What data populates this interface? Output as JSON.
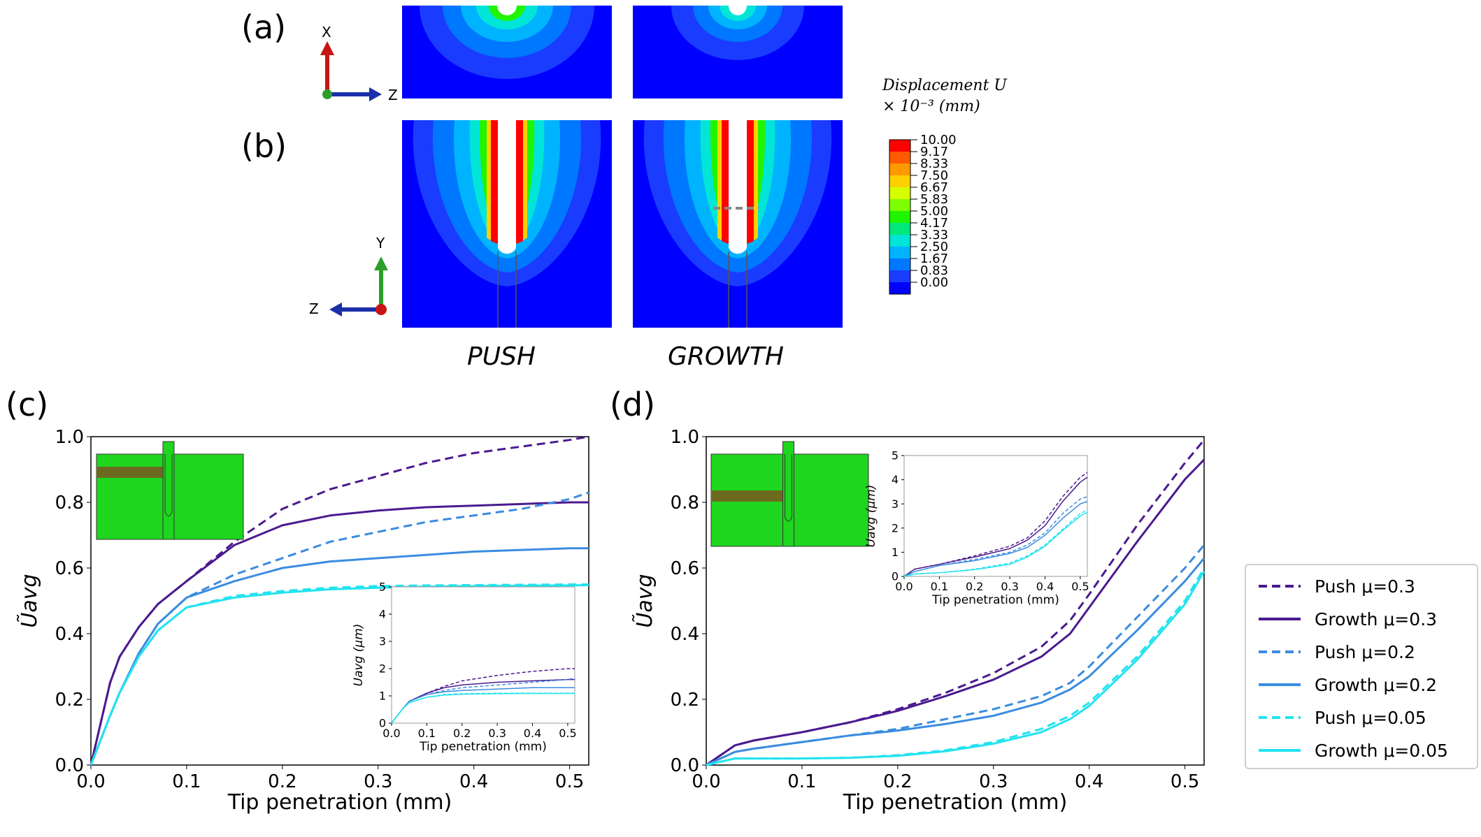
{
  "panel_labels": {
    "a": "(a)",
    "b": "(b)",
    "c": "(c)",
    "d": "(d)"
  },
  "columns": {
    "push": "PUSH",
    "growth": "GROWTH"
  },
  "axes_a": {
    "vertical": "X",
    "horizontal": "Z"
  },
  "axes_b": {
    "vertical": "Y",
    "horizontal": "Z"
  },
  "colorbar": {
    "title_line1": "Displacement U",
    "title_line2": "× 10⁻³ (mm)",
    "labels": [
      "10.00",
      "9.17",
      "8.33",
      "7.50",
      "6.67",
      "5.83",
      "5.00",
      "4.17",
      "3.33",
      "2.50",
      "1.67",
      "0.83",
      "0.00"
    ],
    "colors": [
      "#ff0000",
      "#ff5a00",
      "#ff9900",
      "#ffd000",
      "#d6ff00",
      "#7dff00",
      "#20f500",
      "#00e87a",
      "#00e5d8",
      "#00b3ff",
      "#0077ff",
      "#1a3cff",
      "#0000ff"
    ]
  },
  "legend": {
    "entries": [
      {
        "label": "Push μ=0.3",
        "color": "#4b1a8f",
        "dash": true
      },
      {
        "label": "Growth μ=0.3",
        "color": "#4b1a8f",
        "dash": false
      },
      {
        "label": "Push μ=0.2",
        "color": "#3a8ce0",
        "dash": true
      },
      {
        "label": "Growth μ=0.2",
        "color": "#3a8ce0",
        "dash": false
      },
      {
        "label": "Push μ=0.05",
        "color": "#22e3f0",
        "dash": true
      },
      {
        "label": "Growth μ=0.05",
        "color": "#22e3f0",
        "dash": false
      }
    ]
  },
  "chart_data": [
    {
      "id": "c",
      "type": "line",
      "xlabel": "Tip penetration (mm)",
      "ylabel": "Ũavg",
      "xlim": [
        0,
        0.52
      ],
      "ylim": [
        0,
        1.0
      ],
      "xticks": [
        "0.0",
        "0.1",
        "0.2",
        "0.3",
        "0.4",
        "0.5"
      ],
      "yticks": [
        "0.0",
        "0.2",
        "0.4",
        "0.6",
        "0.8",
        "1.0"
      ],
      "x": [
        0,
        0.02,
        0.03,
        0.05,
        0.07,
        0.1,
        0.15,
        0.2,
        0.25,
        0.3,
        0.35,
        0.4,
        0.45,
        0.5,
        0.52
      ],
      "series": [
        {
          "name": "Push μ=0.3",
          "color": "#4b1a8f",
          "dash": true,
          "values": [
            0,
            0.25,
            0.33,
            0.42,
            0.49,
            0.56,
            0.68,
            0.78,
            0.84,
            0.88,
            0.92,
            0.95,
            0.97,
            0.99,
            1.0
          ]
        },
        {
          "name": "Growth μ=0.3",
          "color": "#4b1a8f",
          "dash": false,
          "values": [
            0,
            0.25,
            0.33,
            0.42,
            0.49,
            0.56,
            0.67,
            0.73,
            0.76,
            0.775,
            0.785,
            0.79,
            0.795,
            0.8,
            0.8
          ]
        },
        {
          "name": "Push μ=0.2",
          "color": "#3a8ce0",
          "dash": true,
          "values": [
            0,
            0.15,
            0.22,
            0.34,
            0.43,
            0.51,
            0.58,
            0.63,
            0.68,
            0.71,
            0.74,
            0.76,
            0.78,
            0.81,
            0.83
          ]
        },
        {
          "name": "Growth μ=0.2",
          "color": "#3a8ce0",
          "dash": false,
          "values": [
            0,
            0.15,
            0.22,
            0.34,
            0.43,
            0.51,
            0.56,
            0.6,
            0.62,
            0.63,
            0.64,
            0.65,
            0.655,
            0.66,
            0.66
          ]
        },
        {
          "name": "Push μ=0.05",
          "color": "#22e3f0",
          "dash": true,
          "values": [
            0,
            0.15,
            0.22,
            0.33,
            0.41,
            0.48,
            0.515,
            0.53,
            0.54,
            0.545,
            0.547,
            0.548,
            0.549,
            0.55,
            0.55
          ]
        },
        {
          "name": "Growth μ=0.05",
          "color": "#22e3f0",
          "dash": false,
          "values": [
            0,
            0.15,
            0.22,
            0.33,
            0.41,
            0.48,
            0.51,
            0.525,
            0.535,
            0.54,
            0.543,
            0.545,
            0.546,
            0.547,
            0.548
          ]
        }
      ],
      "inset": {
        "xlabel": "Tip penetration (mm)",
        "ylabel": "Uavg (μm)",
        "xlim": [
          0,
          0.52
        ],
        "ylim": [
          0,
          5
        ],
        "xticks": [
          "0.0",
          "0.1",
          "0.2",
          "0.3",
          "0.4",
          "0.5"
        ],
        "yticks": [
          "0",
          "1",
          "2",
          "3",
          "4",
          "5"
        ],
        "x": [
          0,
          0.03,
          0.05,
          0.1,
          0.15,
          0.2,
          0.3,
          0.4,
          0.5,
          0.52
        ],
        "series": [
          {
            "color": "#4b1a8f",
            "dash": true,
            "values": [
              0,
              0.5,
              0.8,
              1.1,
              1.35,
              1.55,
              1.75,
              1.9,
              2.0,
              2.0
            ]
          },
          {
            "color": "#4b1a8f",
            "dash": false,
            "values": [
              0,
              0.5,
              0.8,
              1.1,
              1.3,
              1.4,
              1.5,
              1.55,
              1.6,
              1.6
            ]
          },
          {
            "color": "#3a8ce0",
            "dash": true,
            "values": [
              0,
              0.5,
              0.8,
              1.05,
              1.2,
              1.3,
              1.4,
              1.5,
              1.6,
              1.65
            ]
          },
          {
            "color": "#3a8ce0",
            "dash": false,
            "values": [
              0,
              0.5,
              0.8,
              1.05,
              1.15,
              1.2,
              1.25,
              1.3,
              1.3,
              1.3
            ]
          },
          {
            "color": "#22e3f0",
            "dash": true,
            "values": [
              0,
              0.5,
              0.75,
              0.95,
              1.05,
              1.08,
              1.1,
              1.1,
              1.1,
              1.1
            ]
          },
          {
            "color": "#22e3f0",
            "dash": false,
            "values": [
              0,
              0.5,
              0.75,
              0.95,
              1.03,
              1.06,
              1.08,
              1.09,
              1.09,
              1.09
            ]
          }
        ]
      }
    },
    {
      "id": "d",
      "type": "line",
      "xlabel": "Tip penetration (mm)",
      "ylabel": "Ũavg",
      "xlim": [
        0,
        0.52
      ],
      "ylim": [
        0,
        1.0
      ],
      "xticks": [
        "0.0",
        "0.1",
        "0.2",
        "0.3",
        "0.4",
        "0.5"
      ],
      "yticks": [
        "0.0",
        "0.2",
        "0.4",
        "0.6",
        "0.8",
        "1.0"
      ],
      "x": [
        0,
        0.03,
        0.05,
        0.1,
        0.15,
        0.2,
        0.25,
        0.3,
        0.35,
        0.38,
        0.4,
        0.45,
        0.5,
        0.52
      ],
      "series": [
        {
          "name": "Push μ=0.3",
          "color": "#4b1a8f",
          "dash": true,
          "values": [
            0,
            0.06,
            0.075,
            0.1,
            0.13,
            0.17,
            0.22,
            0.28,
            0.36,
            0.44,
            0.52,
            0.73,
            0.92,
            0.99
          ]
        },
        {
          "name": "Growth μ=0.3",
          "color": "#4b1a8f",
          "dash": false,
          "values": [
            0,
            0.06,
            0.075,
            0.1,
            0.13,
            0.165,
            0.21,
            0.26,
            0.33,
            0.4,
            0.48,
            0.68,
            0.87,
            0.93
          ]
        },
        {
          "name": "Push μ=0.2",
          "color": "#3a8ce0",
          "dash": true,
          "values": [
            0,
            0.04,
            0.05,
            0.07,
            0.09,
            0.11,
            0.14,
            0.17,
            0.21,
            0.25,
            0.3,
            0.45,
            0.6,
            0.67
          ]
        },
        {
          "name": "Growth μ=0.2",
          "color": "#3a8ce0",
          "dash": false,
          "values": [
            0,
            0.04,
            0.05,
            0.07,
            0.09,
            0.105,
            0.125,
            0.15,
            0.19,
            0.23,
            0.27,
            0.41,
            0.56,
            0.63
          ]
        },
        {
          "name": "Push μ=0.05",
          "color": "#22e3f0",
          "dash": true,
          "values": [
            0,
            0.02,
            0.02,
            0.02,
            0.022,
            0.03,
            0.045,
            0.07,
            0.11,
            0.15,
            0.19,
            0.33,
            0.5,
            0.6
          ]
        },
        {
          "name": "Growth μ=0.05",
          "color": "#22e3f0",
          "dash": false,
          "values": [
            0,
            0.02,
            0.02,
            0.02,
            0.022,
            0.028,
            0.042,
            0.065,
            0.1,
            0.14,
            0.18,
            0.32,
            0.49,
            0.59
          ]
        }
      ],
      "inset": {
        "xlabel": "Tip penetration (mm)",
        "ylabel": "Uavg (μm)",
        "xlim": [
          0,
          0.52
        ],
        "ylim": [
          0,
          5
        ],
        "xticks": [
          "0.0",
          "0.1",
          "0.2",
          "0.3",
          "0.4",
          "0.5"
        ],
        "yticks": [
          "0",
          "1",
          "2",
          "3",
          "4",
          "5"
        ],
        "x": [
          0,
          0.03,
          0.1,
          0.2,
          0.3,
          0.35,
          0.4,
          0.45,
          0.5,
          0.52
        ],
        "series": [
          {
            "color": "#4b1a8f",
            "dash": true,
            "values": [
              0,
              0.3,
              0.5,
              0.85,
              1.25,
              1.6,
              2.3,
              3.3,
              4.1,
              4.3
            ]
          },
          {
            "color": "#4b1a8f",
            "dash": false,
            "values": [
              0,
              0.3,
              0.5,
              0.8,
              1.15,
              1.5,
              2.1,
              3.1,
              3.9,
              4.1
            ]
          },
          {
            "color": "#3a8ce0",
            "dash": true,
            "values": [
              0,
              0.2,
              0.45,
              0.7,
              1.0,
              1.3,
              1.8,
              2.6,
              3.2,
              3.3
            ]
          },
          {
            "color": "#3a8ce0",
            "dash": false,
            "values": [
              0,
              0.2,
              0.45,
              0.65,
              0.95,
              1.2,
              1.7,
              2.4,
              3.0,
              3.1
            ]
          },
          {
            "color": "#22e3f0",
            "dash": true,
            "values": [
              0,
              0.1,
              0.15,
              0.3,
              0.55,
              0.85,
              1.3,
              1.95,
              2.6,
              2.75
            ]
          },
          {
            "color": "#22e3f0",
            "dash": false,
            "values": [
              0,
              0.1,
              0.15,
              0.28,
              0.5,
              0.8,
              1.25,
              1.9,
              2.5,
              2.65
            ]
          }
        ]
      }
    }
  ]
}
